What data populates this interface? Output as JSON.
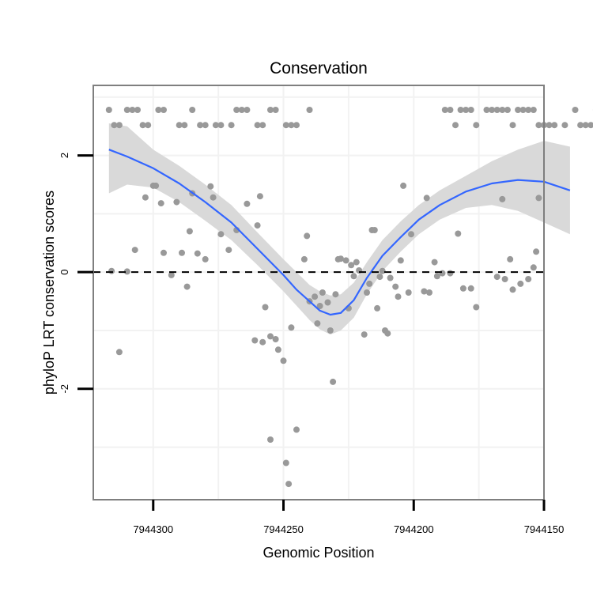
{
  "chart_data": {
    "type": "scatter",
    "title": "Conservation",
    "xlabel": "Genomic Position",
    "ylabel": "phyloP LRT conservation scores",
    "x_reversed": true,
    "xlim": [
      7944323,
      7944150
    ],
    "ylim": [
      -3.9,
      3.2
    ],
    "x_ticks": [
      7944300,
      7944250,
      7944200,
      7944150
    ],
    "y_ticks": [
      2,
      0,
      -2
    ],
    "y_tick_labels": [
      "2",
      "0",
      "-2"
    ],
    "grid": true,
    "reference_line": {
      "y": 0,
      "style": "dashed"
    },
    "smooth_line": [
      [
        7944317,
        2.1
      ],
      [
        7944310,
        1.98
      ],
      [
        7944300,
        1.78
      ],
      [
        7944290,
        1.52
      ],
      [
        7944280,
        1.2
      ],
      [
        7944270,
        0.85
      ],
      [
        7944260,
        0.4
      ],
      [
        7944250,
        -0.05
      ],
      [
        7944245,
        -0.3
      ],
      [
        7944240,
        -0.5
      ],
      [
        7944236,
        -0.66
      ],
      [
        7944232,
        -0.73
      ],
      [
        7944228,
        -0.7
      ],
      [
        7944223,
        -0.48
      ],
      [
        7944218,
        -0.1
      ],
      [
        7944212,
        0.28
      ],
      [
        7944205,
        0.6
      ],
      [
        7944198,
        0.9
      ],
      [
        7944190,
        1.15
      ],
      [
        7944180,
        1.38
      ],
      [
        7944170,
        1.52
      ],
      [
        7944160,
        1.58
      ],
      [
        7944150,
        1.55
      ],
      [
        7944140,
        1.4
      ]
    ],
    "confidence_band": [
      [
        7944317,
        1.35,
        2.55
      ],
      [
        7944310,
        1.5,
        2.5
      ],
      [
        7944300,
        1.45,
        2.1
      ],
      [
        7944290,
        1.2,
        1.82
      ],
      [
        7944280,
        0.88,
        1.5
      ],
      [
        7944270,
        0.55,
        1.15
      ],
      [
        7944260,
        0.12,
        0.68
      ],
      [
        7944250,
        -0.33,
        0.22
      ],
      [
        7944240,
        -0.82,
        -0.22
      ],
      [
        7944236,
        -0.98,
        -0.33
      ],
      [
        7944232,
        -1.07,
        -0.4
      ],
      [
        7944228,
        -1.0,
        -0.38
      ],
      [
        7944223,
        -0.78,
        -0.18
      ],
      [
        7944218,
        -0.38,
        0.17
      ],
      [
        7944212,
        0.02,
        0.55
      ],
      [
        7944205,
        0.35,
        0.87
      ],
      [
        7944198,
        0.65,
        1.15
      ],
      [
        7944190,
        0.9,
        1.4
      ],
      [
        7944180,
        1.1,
        1.65
      ],
      [
        7944170,
        1.15,
        1.9
      ],
      [
        7944160,
        1.05,
        2.1
      ],
      [
        7944150,
        0.85,
        2.25
      ],
      [
        7944140,
        0.65,
        2.15
      ]
    ],
    "points": [
      [
        7944317,
        2.78
      ],
      [
        7944315,
        2.52
      ],
      [
        7944313,
        2.52
      ],
      [
        7944310,
        2.78
      ],
      [
        7944308,
        2.78
      ],
      [
        7944306,
        2.78
      ],
      [
        7944304,
        2.52
      ],
      [
        7944302,
        2.52
      ],
      [
        7944298,
        2.78
      ],
      [
        7944296,
        2.78
      ],
      [
        7944290,
        2.52
      ],
      [
        7944288,
        2.52
      ],
      [
        7944285,
        2.78
      ],
      [
        7944282,
        2.52
      ],
      [
        7944280,
        2.52
      ],
      [
        7944276,
        2.52
      ],
      [
        7944274,
        2.52
      ],
      [
        7944270,
        2.52
      ],
      [
        7944268,
        2.78
      ],
      [
        7944266,
        2.78
      ],
      [
        7944264,
        2.78
      ],
      [
        7944260,
        2.52
      ],
      [
        7944258,
        2.52
      ],
      [
        7944255,
        2.78
      ],
      [
        7944253,
        2.78
      ],
      [
        7944249,
        2.52
      ],
      [
        7944247,
        2.52
      ],
      [
        7944245,
        2.52
      ],
      [
        7944240,
        2.78
      ],
      [
        7944188,
        2.78
      ],
      [
        7944186,
        2.78
      ],
      [
        7944184,
        2.52
      ],
      [
        7944182,
        2.78
      ],
      [
        7944180,
        2.78
      ],
      [
        7944178,
        2.78
      ],
      [
        7944176,
        2.52
      ],
      [
        7944172,
        2.78
      ],
      [
        7944170,
        2.78
      ],
      [
        7944168,
        2.78
      ],
      [
        7944166,
        2.78
      ],
      [
        7944164,
        2.78
      ],
      [
        7944162,
        2.52
      ],
      [
        7944160,
        2.78
      ],
      [
        7944158,
        2.78
      ],
      [
        7944156,
        2.78
      ],
      [
        7944154,
        2.78
      ],
      [
        7944152,
        2.52
      ],
      [
        7944150,
        2.52
      ],
      [
        7944148,
        2.52
      ],
      [
        7944146,
        2.52
      ],
      [
        7944142,
        2.52
      ],
      [
        7944138,
        2.78
      ],
      [
        7944136,
        2.52
      ],
      [
        7944134,
        2.52
      ],
      [
        7944132,
        2.52
      ],
      [
        7944130,
        2.78
      ],
      [
        7944128,
        2.78
      ],
      [
        7944316,
        0.02
      ],
      [
        7944313,
        -1.37
      ],
      [
        7944310,
        0.01
      ],
      [
        7944307,
        0.38
      ],
      [
        7944303,
        1.28
      ],
      [
        7944300,
        1.48
      ],
      [
        7944299,
        1.48
      ],
      [
        7944297,
        1.18
      ],
      [
        7944296,
        0.33
      ],
      [
        7944293,
        -0.05
      ],
      [
        7944291,
        1.2
      ],
      [
        7944289,
        0.33
      ],
      [
        7944287,
        -0.25
      ],
      [
        7944286,
        0.7
      ],
      [
        7944285,
        1.35
      ],
      [
        7944283,
        0.32
      ],
      [
        7944280,
        0.22
      ],
      [
        7944278,
        1.47
      ],
      [
        7944277,
        1.28
      ],
      [
        7944274,
        0.65
      ],
      [
        7944271,
        0.38
      ],
      [
        7944268,
        0.72
      ],
      [
        7944264,
        1.17
      ],
      [
        7944261,
        -1.17
      ],
      [
        7944260,
        0.8
      ],
      [
        7944259,
        1.3
      ],
      [
        7944258,
        -1.2
      ],
      [
        7944257,
        -0.6
      ],
      [
        7944255,
        -1.1
      ],
      [
        7944253,
        -1.15
      ],
      [
        7944252,
        -1.33
      ],
      [
        7944250,
        -1.52
      ],
      [
        7944249,
        -3.27
      ],
      [
        7944248,
        -3.63
      ],
      [
        7944247,
        -0.95
      ],
      [
        7944255,
        -2.87
      ],
      [
        7944245,
        -2.7
      ],
      [
        7944242,
        0.22
      ],
      [
        7944241,
        0.62
      ],
      [
        7944240,
        -0.5
      ],
      [
        7944238,
        -0.42
      ],
      [
        7944237,
        -0.88
      ],
      [
        7944236,
        -0.58
      ],
      [
        7944235,
        -0.35
      ],
      [
        7944233,
        -0.52
      ],
      [
        7944232,
        -1.0
      ],
      [
        7944231,
        -1.88
      ],
      [
        7944230,
        -0.38
      ],
      [
        7944229,
        0.22
      ],
      [
        7944228,
        0.23
      ],
      [
        7944226,
        0.2
      ],
      [
        7944225,
        -0.62
      ],
      [
        7944224,
        0.12
      ],
      [
        7944223,
        -0.07
      ],
      [
        7944222,
        0.17
      ],
      [
        7944221,
        0.03
      ],
      [
        7944219,
        -1.07
      ],
      [
        7944218,
        -0.35
      ],
      [
        7944217,
        -0.2
      ],
      [
        7944216,
        0.72
      ],
      [
        7944215,
        0.72
      ],
      [
        7944214,
        -0.62
      ],
      [
        7944213,
        -0.08
      ],
      [
        7944212,
        0.02
      ],
      [
        7944211,
        -1.0
      ],
      [
        7944210,
        -1.05
      ],
      [
        7944209,
        -0.1
      ],
      [
        7944207,
        -0.25
      ],
      [
        7944206,
        -0.42
      ],
      [
        7944205,
        0.2
      ],
      [
        7944204,
        1.48
      ],
      [
        7944202,
        -0.35
      ],
      [
        7944201,
        0.65
      ],
      [
        7944196,
        -0.33
      ],
      [
        7944195,
        1.27
      ],
      [
        7944194,
        -0.35
      ],
      [
        7944192,
        0.17
      ],
      [
        7944191,
        -0.07
      ],
      [
        7944189,
        -0.02
      ],
      [
        7944186,
        -0.02
      ],
      [
        7944183,
        0.66
      ],
      [
        7944181,
        -0.28
      ],
      [
        7944178,
        -0.28
      ],
      [
        7944176,
        -0.6
      ],
      [
        7944168,
        -0.08
      ],
      [
        7944166,
        1.25
      ],
      [
        7944165,
        -0.12
      ],
      [
        7944163,
        0.22
      ],
      [
        7944162,
        -0.3
      ],
      [
        7944159,
        -0.2
      ],
      [
        7944156,
        -0.12
      ],
      [
        7944154,
        0.08
      ],
      [
        7944153,
        0.35
      ],
      [
        7944152,
        1.27
      ]
    ],
    "colors": {
      "points": "#999999",
      "smooth": "#3366ff",
      "band": "#d9d9d9",
      "panel_border": "#7f7f7f",
      "grid": "#f2f2f2",
      "reference": "#000000"
    }
  }
}
